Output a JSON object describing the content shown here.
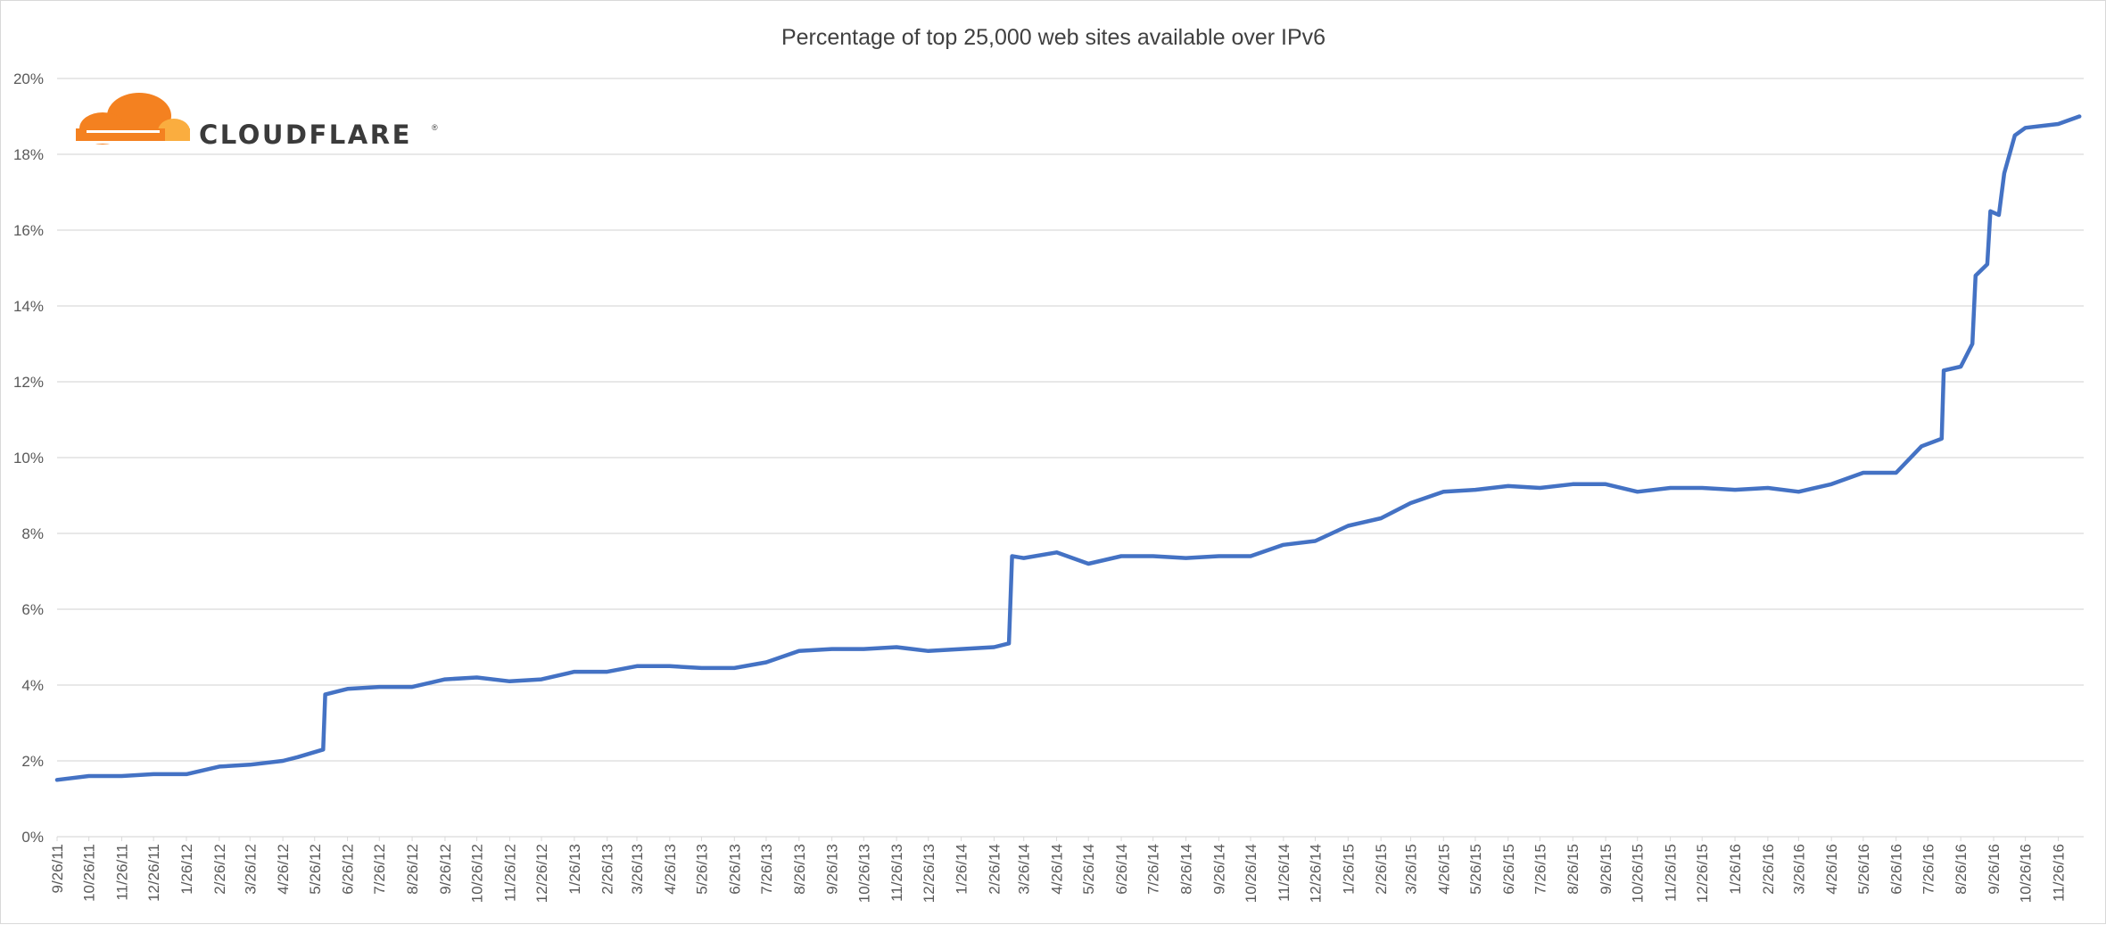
{
  "chart_data": {
    "type": "line",
    "title": "Percentage of top 25,000 web sites available over IPv6",
    "xlabel": "",
    "ylabel": "",
    "ylim": [
      0,
      20
    ],
    "grid": true,
    "legend": "none",
    "y_ticks": [
      "0%",
      "2%",
      "4%",
      "6%",
      "8%",
      "10%",
      "12%",
      "14%",
      "16%",
      "18%",
      "20%"
    ],
    "x_ticks": [
      "9/26/11",
      "10/26/11",
      "11/26/11",
      "12/26/11",
      "1/26/12",
      "2/26/12",
      "3/26/12",
      "4/26/12",
      "5/26/12",
      "6/26/12",
      "7/26/12",
      "8/26/12",
      "9/26/12",
      "10/26/12",
      "11/26/12",
      "12/26/12",
      "1/26/13",
      "2/26/13",
      "3/26/13",
      "4/26/13",
      "5/26/13",
      "6/26/13",
      "7/26/13",
      "8/26/13",
      "9/26/13",
      "10/26/13",
      "11/26/13",
      "12/26/13",
      "1/26/14",
      "2/26/14",
      "3/26/14",
      "4/26/14",
      "5/26/14",
      "6/26/14",
      "7/26/14",
      "8/26/14",
      "9/26/14",
      "10/26/14",
      "11/26/14",
      "12/26/14",
      "1/26/15",
      "2/26/15",
      "3/26/15",
      "4/26/15",
      "5/26/15",
      "6/26/15",
      "7/26/15",
      "8/26/15",
      "9/26/15",
      "10/26/15",
      "11/26/15",
      "12/26/15",
      "1/26/16",
      "2/26/16",
      "3/26/16",
      "4/26/16",
      "5/26/16",
      "6/26/16",
      "7/26/16",
      "8/26/16",
      "9/26/16",
      "10/26/16",
      "11/26/16"
    ],
    "series": [
      {
        "color": "#4472c4",
        "points": [
          [
            "9/26/11",
            1.5
          ],
          [
            "10/26/11",
            1.6
          ],
          [
            "11/26/11",
            1.6
          ],
          [
            "12/26/11",
            1.65
          ],
          [
            "1/26/12",
            1.65
          ],
          [
            "2/26/12",
            1.85
          ],
          [
            "3/26/12",
            1.9
          ],
          [
            "4/26/12",
            2.0
          ],
          [
            "5/10/12",
            2.1
          ],
          [
            "6/3/12",
            2.3
          ],
          [
            "6/5/12",
            3.75
          ],
          [
            "6/26/12",
            3.9
          ],
          [
            "7/26/12",
            3.95
          ],
          [
            "8/26/12",
            3.95
          ],
          [
            "9/26/12",
            4.15
          ],
          [
            "10/26/12",
            4.2
          ],
          [
            "11/26/12",
            4.1
          ],
          [
            "12/26/12",
            4.15
          ],
          [
            "1/26/13",
            4.35
          ],
          [
            "2/26/13",
            4.35
          ],
          [
            "3/26/13",
            4.5
          ],
          [
            "4/26/13",
            4.5
          ],
          [
            "5/26/13",
            4.45
          ],
          [
            "6/26/13",
            4.45
          ],
          [
            "7/26/13",
            4.6
          ],
          [
            "8/26/13",
            4.9
          ],
          [
            "9/26/13",
            4.95
          ],
          [
            "10/26/13",
            4.95
          ],
          [
            "11/26/13",
            5.0
          ],
          [
            "12/26/13",
            4.9
          ],
          [
            "1/26/14",
            4.95
          ],
          [
            "2/26/14",
            5.0
          ],
          [
            "3/12/14",
            5.1
          ],
          [
            "3/15/14",
            7.4
          ],
          [
            "3/26/14",
            7.35
          ],
          [
            "4/26/14",
            7.5
          ],
          [
            "5/26/14",
            7.2
          ],
          [
            "6/26/14",
            7.4
          ],
          [
            "7/26/14",
            7.4
          ],
          [
            "8/26/14",
            7.35
          ],
          [
            "9/26/14",
            7.4
          ],
          [
            "10/26/14",
            7.4
          ],
          [
            "11/26/14",
            7.7
          ],
          [
            "12/26/14",
            7.8
          ],
          [
            "1/26/15",
            8.2
          ],
          [
            "2/26/15",
            8.4
          ],
          [
            "3/26/15",
            8.8
          ],
          [
            "4/26/15",
            9.1
          ],
          [
            "5/26/15",
            9.15
          ],
          [
            "6/26/15",
            9.25
          ],
          [
            "7/26/15",
            9.2
          ],
          [
            "8/26/15",
            9.3
          ],
          [
            "9/26/15",
            9.3
          ],
          [
            "10/26/15",
            9.1
          ],
          [
            "11/26/15",
            9.2
          ],
          [
            "12/26/15",
            9.2
          ],
          [
            "1/26/16",
            9.15
          ],
          [
            "2/26/16",
            9.2
          ],
          [
            "3/26/16",
            9.1
          ],
          [
            "4/26/16",
            9.3
          ],
          [
            "5/26/16",
            9.6
          ],
          [
            "6/26/16",
            9.6
          ],
          [
            "7/20/16",
            10.3
          ],
          [
            "8/8/16",
            10.5
          ],
          [
            "8/10/16",
            12.3
          ],
          [
            "8/26/16",
            12.4
          ],
          [
            "9/6/16",
            13.0
          ],
          [
            "9/9/16",
            14.8
          ],
          [
            "9/20/16",
            15.1
          ],
          [
            "9/23/16",
            16.5
          ],
          [
            "10/1/16",
            16.4
          ],
          [
            "10/6/16",
            17.5
          ],
          [
            "10/16/16",
            18.5
          ],
          [
            "10/26/16",
            18.7
          ],
          [
            "11/26/16",
            18.8
          ],
          [
            "12/16/16",
            19.0
          ]
        ]
      }
    ]
  },
  "logo": {
    "name": "cloudflare-logo-icon",
    "text": "CLOUDFLARE"
  }
}
